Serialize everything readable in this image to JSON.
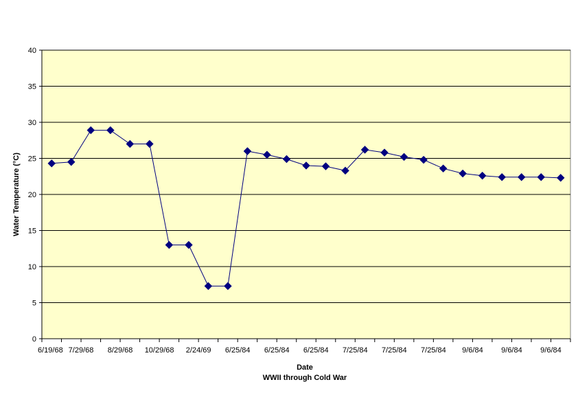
{
  "chart_data": {
    "type": "line",
    "title": "",
    "xlabel": "Date",
    "xlabel_sub": "WWII through Cold War",
    "ylabel": "Water Temperature (°C)",
    "ylim": [
      0,
      40
    ],
    "y_ticks": [
      0,
      5,
      10,
      15,
      20,
      25,
      30,
      35,
      40
    ],
    "x_tick_labels": [
      "6/19/68",
      "7/29/68",
      "8/29/68",
      "10/29/68",
      "2/24/69",
      "6/25/84",
      "6/25/84",
      "6/25/84",
      "7/25/84",
      "7/25/84",
      "7/25/84",
      "9/6/84",
      "9/6/84",
      "9/6/84"
    ],
    "grid": "horizontal",
    "plot_background": "#FFFFCC",
    "series": [
      {
        "color": "#000080",
        "marker": "diamond",
        "values": [
          24.3,
          24.5,
          28.9,
          28.9,
          27.0,
          27.0,
          13.0,
          13.0,
          7.3,
          7.3,
          26.0,
          25.5,
          24.9,
          24.0,
          23.9,
          23.3,
          26.2,
          25.8,
          25.2,
          24.8,
          23.6,
          22.9,
          22.6,
          22.4,
          22.4,
          22.4,
          22.3
        ]
      }
    ]
  }
}
